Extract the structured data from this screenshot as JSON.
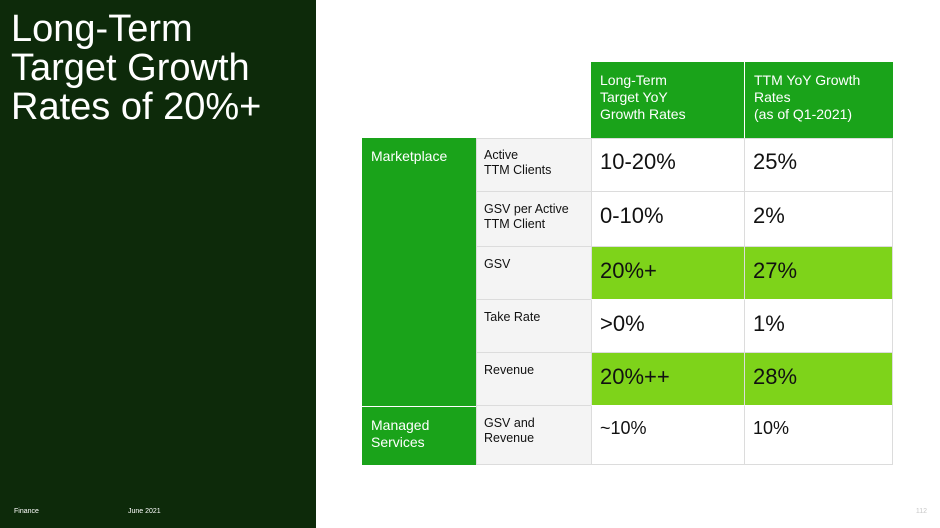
{
  "slide": {
    "title_lines": [
      "Long-Term",
      "Target Growth",
      "Rates of 20%+"
    ],
    "footer_section": "Finance",
    "footer_date": "June 2021",
    "page_number": "112"
  },
  "table": {
    "headers": {
      "long_term": [
        "Long-Term",
        "Target YoY",
        "Growth Rates"
      ],
      "ttm": [
        "TTM YoY Growth",
        "Rates",
        "(as of Q1-2021)"
      ]
    },
    "segments": {
      "marketplace": [
        "Marketplace"
      ],
      "managed_services": [
        "Managed",
        "Services"
      ]
    },
    "rows": [
      {
        "metric": [
          "Active",
          "TTM Clients"
        ],
        "long_term": "10-20%",
        "ttm": "25%"
      },
      {
        "metric": [
          "GSV per Active",
          "TTM Client"
        ],
        "long_term": "0-10%",
        "ttm": "2%"
      },
      {
        "metric": [
          "GSV"
        ],
        "long_term": "20%+",
        "ttm": "27%"
      },
      {
        "metric": [
          "Take Rate"
        ],
        "long_term": ">0%",
        "ttm": "1%"
      },
      {
        "metric": [
          "Revenue"
        ],
        "long_term": "20%++",
        "ttm": "28%"
      },
      {
        "metric": [
          "GSV and",
          "Revenue"
        ],
        "long_term": "~10%",
        "ttm": "10%"
      }
    ],
    "colors": {
      "header_green": "#1aa31a",
      "highlight_green": "#7ed31a",
      "dark_panel": "#0d2a0a"
    }
  }
}
